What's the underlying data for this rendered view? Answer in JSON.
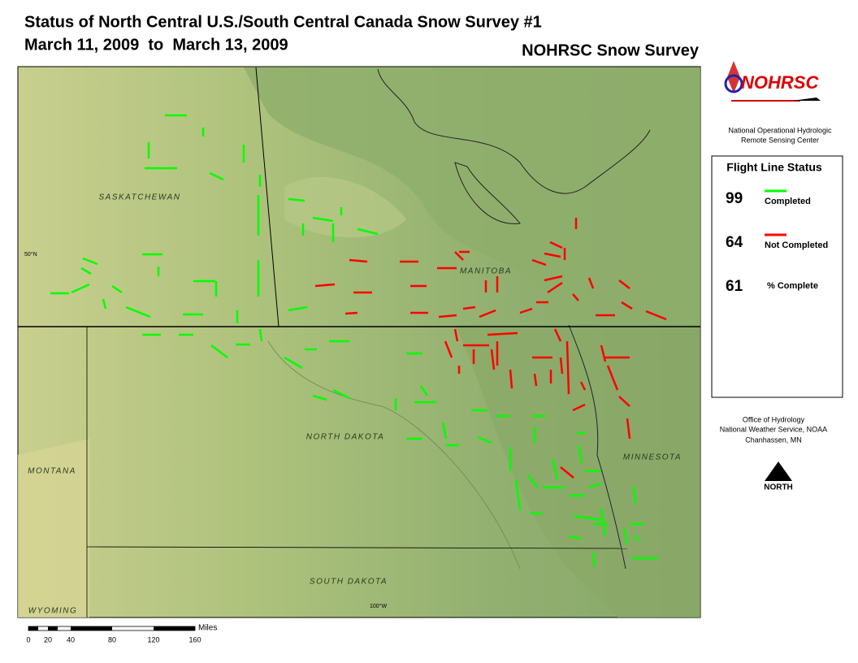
{
  "title": {
    "line1": "Status of North Central U.S./South Central Canada Snow Survey #1",
    "line2": "March 11, 2009  to  March 13, 2009"
  },
  "subtitle": "NOHRSC Snow Survey",
  "logo": {
    "text": "NOHRSC",
    "caption_line1": "National Operational Hydrologic",
    "caption_line2": "Remote Sensing Center"
  },
  "legend": {
    "title": "Flight Line Status",
    "items": [
      {
        "count": 99,
        "label": "Completed",
        "color": "#00ff00"
      },
      {
        "count": 64,
        "label": "Not Completed",
        "color": "#ff0000"
      },
      {
        "count": 61,
        "label": "% Complete"
      }
    ]
  },
  "office": [
    "Office of Hydrology",
    "National Weather Service, NOAA",
    "Chanhassen, MN"
  ],
  "north": "NORTH",
  "map": {
    "labels": [
      "SASKATCHEWAN",
      "MANITOBA",
      "NORTH DAKOTA",
      "MONTANA",
      "MINNESOTA",
      "SOUTH DAKOTA",
      "WYOMING"
    ],
    "latitude": "50°N",
    "longitude": "100°W"
  },
  "scale": {
    "unit": "Miles",
    "ticks": [
      "0",
      "20",
      "40",
      "80",
      "120",
      "160"
    ]
  }
}
